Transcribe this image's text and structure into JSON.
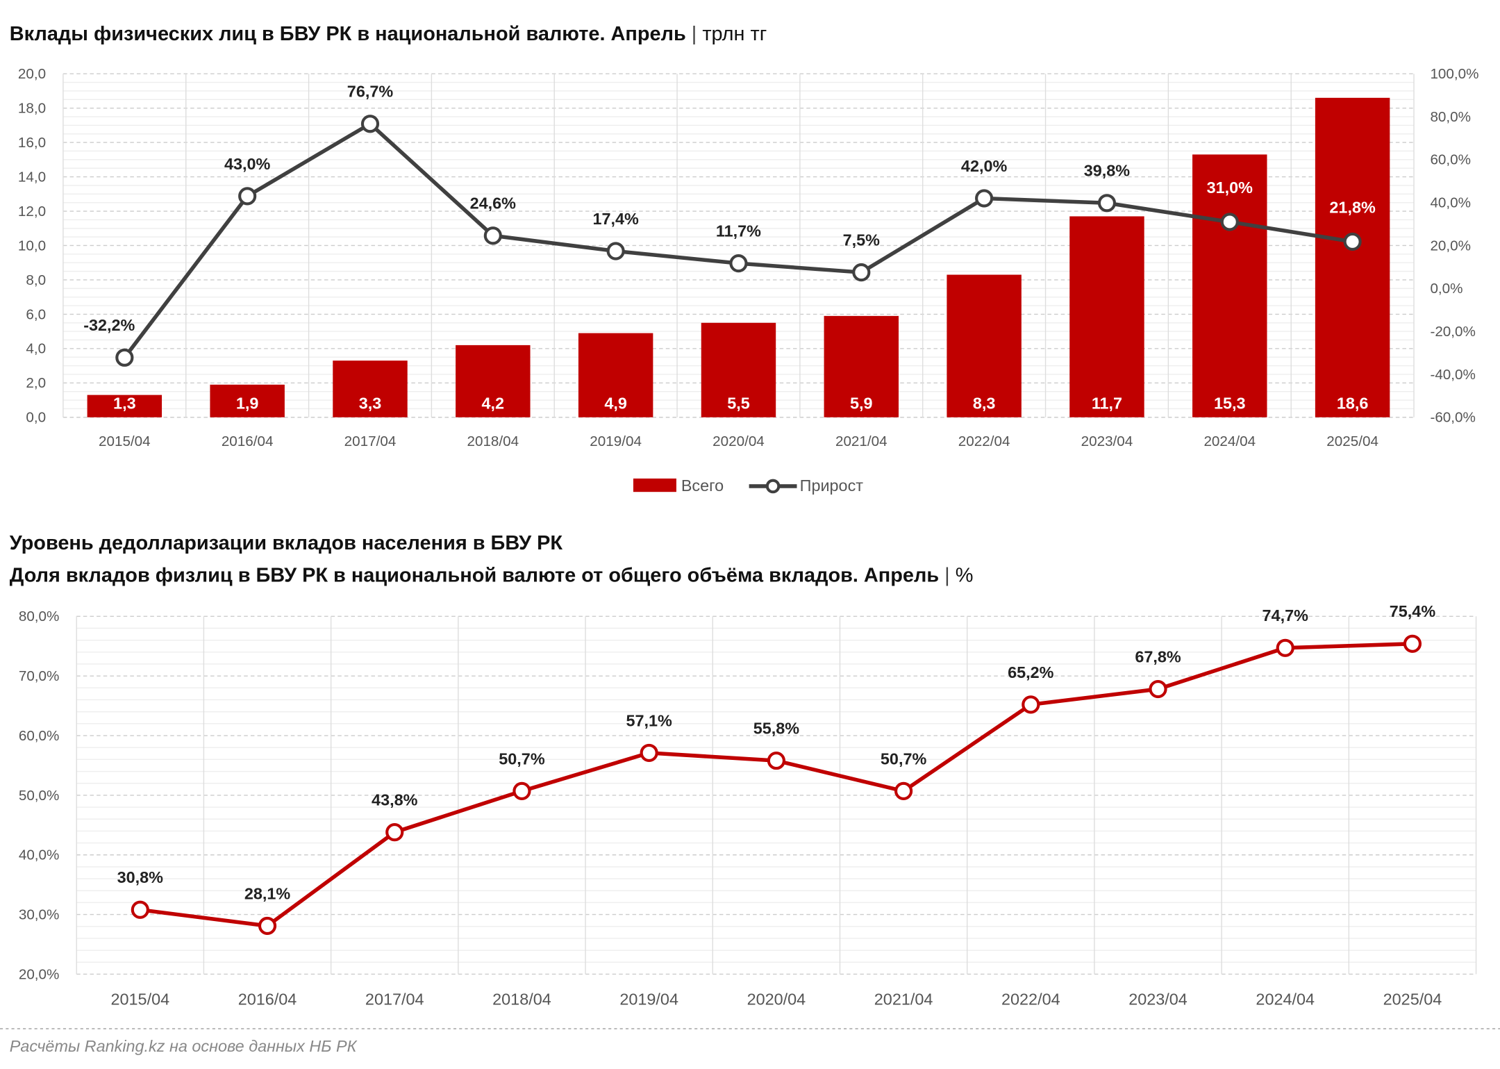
{
  "chart_data": [
    {
      "type": "bar+line",
      "title": "Вклады физических лиц в БВУ РК в национальной валюте. Апрель",
      "unit": "трлн тг",
      "categories": [
        "2015/04",
        "2016/04",
        "2017/04",
        "2018/04",
        "2019/04",
        "2020/04",
        "2021/04",
        "2022/04",
        "2023/04",
        "2024/04",
        "2025/04"
      ],
      "series": [
        {
          "name": "Всего",
          "type": "bar",
          "axis": "left",
          "color": "#c00000",
          "values": [
            1.3,
            1.9,
            3.3,
            4.2,
            4.9,
            5.5,
            5.9,
            8.3,
            11.7,
            15.3,
            18.6
          ],
          "labels": [
            "1,3",
            "1,9",
            "3,3",
            "4,2",
            "4,9",
            "5,5",
            "5,9",
            "8,3",
            "11,7",
            "15,3",
            "18,6"
          ]
        },
        {
          "name": "Прирост",
          "type": "line",
          "axis": "right",
          "color": "#404040",
          "values": [
            -32.2,
            43.0,
            76.7,
            24.6,
            17.4,
            11.7,
            7.5,
            42.0,
            39.8,
            31.0,
            21.8
          ],
          "labels": [
            "-32,2%",
            "43,0%",
            "76,7%",
            "24,6%",
            "17,4%",
            "11,7%",
            "7,5%",
            "42,0%",
            "39,8%",
            "31,0%",
            "21,8%"
          ]
        }
      ],
      "ylim_left": [
        0,
        20
      ],
      "ylim_right": [
        -60,
        100
      ],
      "yticks_left": [
        "0,0",
        "2,0",
        "4,0",
        "6,0",
        "8,0",
        "10,0",
        "12,0",
        "14,0",
        "16,0",
        "18,0",
        "20,0"
      ],
      "yticks_right": [
        "-60,0%",
        "-40,0%",
        "-20,0%",
        "0,0%",
        "20,0%",
        "40,0%",
        "60,0%",
        "80,0%",
        "100,0%"
      ],
      "grid": true,
      "legend": "bottom"
    },
    {
      "type": "line",
      "title": "Уровень дедолларизации вкладов населения в БВУ РК",
      "subtitle": "Доля вкладов физлиц в БВУ РК в национальной валюте от общего объёма вкладов. Апрель",
      "unit": "%",
      "categories": [
        "2015/04",
        "2016/04",
        "2017/04",
        "2018/04",
        "2019/04",
        "2020/04",
        "2021/04",
        "2022/04",
        "2023/04",
        "2024/04",
        "2025/04"
      ],
      "series": [
        {
          "type": "line",
          "color": "#c00000",
          "values": [
            30.8,
            28.1,
            43.8,
            50.7,
            57.1,
            55.8,
            50.7,
            65.2,
            67.8,
            74.7,
            75.4
          ],
          "labels": [
            "30,8%",
            "28,1%",
            "43,8%",
            "50,7%",
            "57,1%",
            "55,8%",
            "50,7%",
            "65,2%",
            "67,8%",
            "74,7%",
            "75,4%"
          ]
        }
      ],
      "ylim": [
        20,
        80
      ],
      "yticks": [
        "20,0%",
        "30,0%",
        "40,0%",
        "50,0%",
        "60,0%",
        "70,0%",
        "80,0%"
      ],
      "grid": true
    }
  ],
  "footer": "Расчёты Ranking.kz на основе данных НБ РК"
}
